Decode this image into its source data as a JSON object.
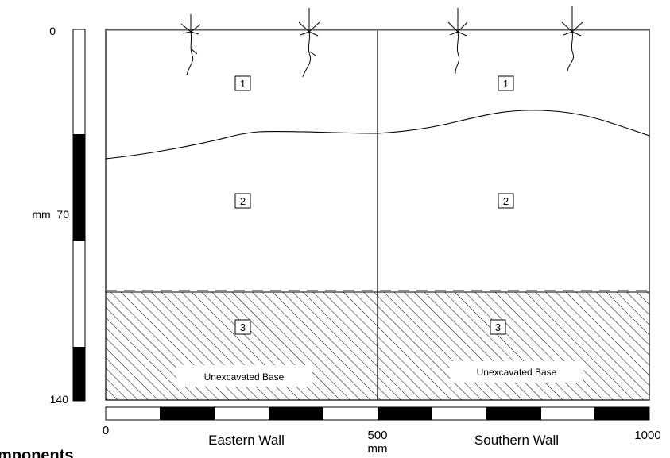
{
  "vertical_scale": {
    "label_top": "0",
    "label_mid": "mm  70",
    "label_bottom": "140"
  },
  "horizontal_scale": {
    "label_left": "0",
    "label_mid": "500",
    "label_mid_unit": "mm",
    "label_right": "1000"
  },
  "walls": [
    {
      "name": "Eastern Wall"
    },
    {
      "name": "Southern Wall"
    }
  ],
  "layers": [
    {
      "number": "1"
    },
    {
      "number": "2"
    },
    {
      "number": "3",
      "note": "Unexcavated Base"
    }
  ],
  "caption_fragment": "mponents"
}
